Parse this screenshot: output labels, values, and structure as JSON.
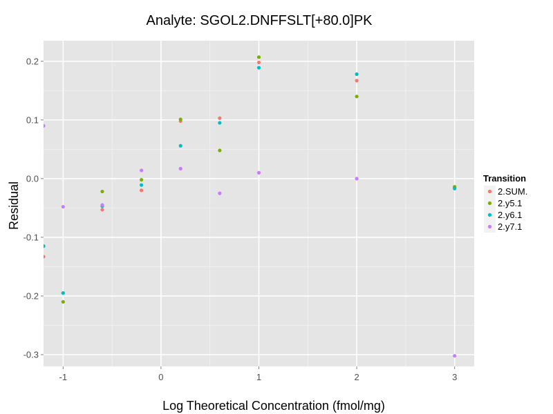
{
  "chart_data": {
    "type": "scatter",
    "title": "Analyte: SGOL2.DNFFSLT[+80.0]PK",
    "xlabel": "Log Theoretical Concentration (fmol/mg)",
    "ylabel": "Residual",
    "xlim": [
      -1.2,
      3.2
    ],
    "ylim": [
      -0.32,
      0.235
    ],
    "xticks": [
      -1,
      0,
      1,
      2,
      3
    ],
    "xtick_labels": [
      "-1",
      "0",
      "1",
      "2",
      "3"
    ],
    "yticks": [
      -0.3,
      -0.2,
      -0.1,
      0.0,
      0.1,
      0.2
    ],
    "ytick_labels": [
      "-0.3",
      "-0.2",
      "-0.1",
      "0.0",
      "0.1",
      "0.2"
    ],
    "grid": true,
    "legend": {
      "title": "Transition",
      "position": "right"
    },
    "series": [
      {
        "name": "2.SUM.",
        "color": "#F8766D",
        "points": [
          [
            -1.2,
            -0.133
          ],
          [
            -1,
            -0.195
          ],
          [
            -0.6,
            -0.053
          ],
          [
            -0.2,
            -0.02
          ],
          [
            0.2,
            0.098
          ],
          [
            0.6,
            0.103
          ],
          [
            1,
            0.198
          ],
          [
            2,
            0.167
          ],
          [
            3,
            -0.015
          ]
        ]
      },
      {
        "name": "2.y5.1",
        "color": "#7CAE00",
        "points": [
          [
            -1.2,
            -0.115
          ],
          [
            -1,
            -0.21
          ],
          [
            -0.6,
            -0.022
          ],
          [
            -0.2,
            -0.002
          ],
          [
            0.2,
            0.101
          ],
          [
            0.6,
            0.048
          ],
          [
            1,
            0.207
          ],
          [
            2,
            0.14
          ],
          [
            3,
            -0.014
          ]
        ]
      },
      {
        "name": "2.y6.1",
        "color": "#00BFC4",
        "points": [
          [
            -1.2,
            -0.115
          ],
          [
            -1,
            -0.195
          ],
          [
            -0.6,
            -0.047
          ],
          [
            -0.2,
            -0.011
          ],
          [
            0.2,
            0.056
          ],
          [
            0.6,
            0.095
          ],
          [
            1,
            0.189
          ],
          [
            2,
            0.178
          ],
          [
            3,
            -0.017
          ]
        ]
      },
      {
        "name": "2.y7.1",
        "color": "#C77CFF",
        "points": [
          [
            -1.2,
            0.09
          ],
          [
            -1,
            -0.048
          ],
          [
            -0.6,
            -0.045
          ],
          [
            -0.2,
            0.014
          ],
          [
            0.2,
            0.017
          ],
          [
            0.6,
            -0.025
          ],
          [
            1,
            0.01
          ],
          [
            2,
            0.0
          ],
          [
            3,
            -0.302
          ]
        ]
      }
    ]
  }
}
